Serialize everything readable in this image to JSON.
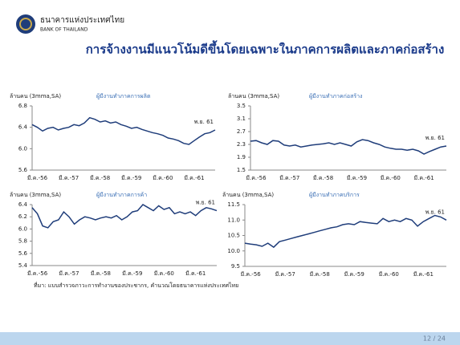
{
  "header": {
    "bank_name_th": "ธนาคารแห่งประเทศไทย",
    "bank_name_en": "BANK OF THAILAND"
  },
  "title": "การจ้างงานมีแนวโน้มดีขึ้นโดยเฉพาะในภาคการผลิตและภาคก่อสร้าง",
  "source": "ที่มา: แบบสำรวจภาวะการทำงานของประชากร, คำนวณโดยธนาคารแห่งประเทศไทย",
  "page": "12 / 24",
  "chart_data": [
    {
      "type": "line",
      "y_label": "ล้านคน (3mma,SA)",
      "annotation": "พ.ย. 61",
      "categories": [
        null,
        "มี.ค.-56",
        null,
        null,
        null,
        null,
        null,
        "มี.ค.-57",
        null,
        null,
        null,
        null,
        null,
        "มี.ค.-58",
        null,
        null,
        null,
        null,
        null,
        "มี.ค.-59",
        null,
        null,
        null,
        null,
        null,
        "มี.ค.-60",
        null,
        null,
        null,
        null,
        null,
        "มี.ค.-61",
        null,
        null,
        null,
        null
      ],
      "series": [
        {
          "name": "ผู้มีงานทำภาคการผลิต",
          "color": "#1f3d7a",
          "values": [
            6.45,
            6.4,
            6.33,
            6.38,
            6.4,
            6.35,
            6.38,
            6.4,
            6.45,
            6.43,
            6.48,
            6.58,
            6.55,
            6.5,
            6.52,
            6.48,
            6.5,
            6.45,
            6.42,
            6.38,
            6.4,
            6.36,
            6.33,
            6.3,
            6.28,
            6.25,
            6.2,
            6.18,
            6.15,
            6.1,
            6.08,
            6.15,
            6.22,
            6.28,
            6.3,
            6.35
          ]
        }
      ],
      "ylim": [
        5.6,
        6.8
      ],
      "yticks": [
        5.6,
        {
          "value": 6.0,
          "label": "6.0"
        },
        6.4,
        6.8
      ]
    },
    {
      "type": "line",
      "y_label": "ล้านคน (3mma,SA)",
      "annotation": "พ.ย. 61",
      "categories": [
        null,
        "มี.ค.-56",
        null,
        null,
        null,
        null,
        null,
        "มี.ค.-57",
        null,
        null,
        null,
        null,
        null,
        "มี.ค.-58",
        null,
        null,
        null,
        null,
        null,
        "มี.ค.-59",
        null,
        null,
        null,
        null,
        null,
        "มี.ค.-60",
        null,
        null,
        null,
        null,
        null,
        "มี.ค.-61",
        null,
        null,
        null,
        null
      ],
      "series": [
        {
          "name": "ผู้มีงานทำภาคก่อสร้าง",
          "color": "#1f3d7a",
          "values": [
            2.4,
            2.42,
            2.35,
            2.3,
            2.42,
            2.4,
            2.28,
            2.25,
            2.28,
            2.22,
            2.25,
            2.28,
            2.3,
            2.32,
            2.35,
            2.3,
            2.35,
            2.3,
            2.25,
            2.38,
            2.45,
            2.42,
            2.35,
            2.3,
            2.22,
            2.18,
            2.15,
            2.15,
            2.12,
            2.15,
            2.1,
            2.0,
            2.08,
            2.15,
            2.22,
            2.25
          ]
        }
      ],
      "ylim": [
        1.5,
        3.5
      ],
      "yticks": [
        1.5,
        1.9,
        2.3,
        2.7,
        3.1,
        3.5
      ]
    },
    {
      "type": "line",
      "y_label": "ล้านคน (3mma,SA)",
      "annotation": "พ.ย. 61",
      "categories": [
        null,
        "มี.ค.-56",
        null,
        null,
        null,
        null,
        null,
        "มี.ค.-57",
        null,
        null,
        null,
        null,
        null,
        "มี.ค.-58",
        null,
        null,
        null,
        null,
        null,
        "มี.ค.-59",
        null,
        null,
        null,
        null,
        null,
        "มี.ค.-60",
        null,
        null,
        null,
        null,
        null,
        "มี.ค.-61",
        null,
        null,
        null,
        null
      ],
      "series": [
        {
          "name": "ผู้มีงานทำภาคการค้า",
          "color": "#1f3d7a",
          "values": [
            6.35,
            6.25,
            6.05,
            6.02,
            6.12,
            6.15,
            6.28,
            6.2,
            6.08,
            6.15,
            6.2,
            6.18,
            6.15,
            6.18,
            6.2,
            6.18,
            6.22,
            6.15,
            6.2,
            6.28,
            6.3,
            6.4,
            6.35,
            6.3,
            6.38,
            6.32,
            6.35,
            6.25,
            6.28,
            6.25,
            6.28,
            6.22,
            6.3,
            6.35,
            6.33,
            6.3
          ]
        }
      ],
      "ylim": [
        5.4,
        6.4
      ],
      "yticks": [
        5.4,
        5.6,
        5.8,
        {
          "value": 6.0,
          "label": "6.0"
        },
        6.2,
        6.4
      ]
    },
    {
      "type": "line",
      "y_label": "ล้านคน (3mma,SA)",
      "annotation": "พ.ย. 61",
      "categories": [
        null,
        "มี.ค.-56",
        null,
        null,
        null,
        null,
        null,
        "มี.ค.-57",
        null,
        null,
        null,
        null,
        null,
        "มี.ค.-58",
        null,
        null,
        null,
        null,
        null,
        "มี.ค.-59",
        null,
        null,
        null,
        null,
        null,
        "มี.ค.-60",
        null,
        null,
        null,
        null,
        null,
        "มี.ค.-61",
        null,
        null,
        null,
        null
      ],
      "series": [
        {
          "name": "ผู้มีงานทำภาคบริการ",
          "color": "#1f3d7a",
          "values": [
            10.25,
            10.22,
            10.2,
            10.15,
            10.25,
            10.12,
            10.3,
            10.35,
            10.4,
            10.45,
            10.5,
            10.55,
            10.6,
            10.65,
            10.7,
            10.75,
            10.78,
            10.85,
            10.88,
            10.85,
            10.95,
            10.92,
            10.9,
            10.88,
            11.05,
            10.95,
            11.0,
            10.95,
            11.05,
            11.0,
            10.8,
            10.95,
            11.05,
            11.15,
            11.1,
            11.0
          ]
        }
      ],
      "ylim": [
        9.5,
        11.5
      ],
      "yticks": [
        9.5,
        {
          "value": 10.0,
          "label": "10.0"
        },
        10.5,
        {
          "value": 11.0,
          "label": "11.0"
        },
        11.5
      ]
    }
  ]
}
